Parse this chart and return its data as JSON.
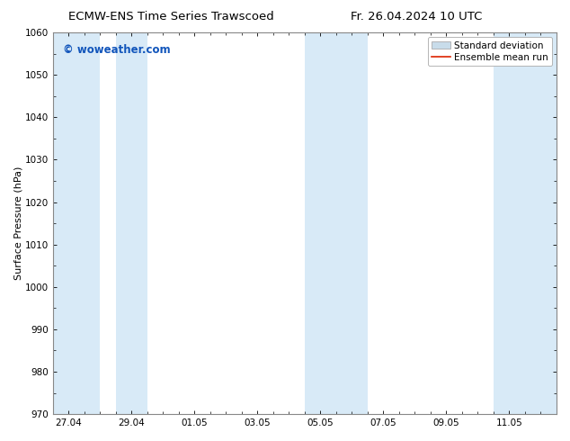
{
  "title_left": "ECMW-ENS Time Series Trawscoed",
  "title_right": "Fr. 26.04.2024 10 UTC",
  "ylabel": "Surface Pressure (hPa)",
  "ylim": [
    970,
    1060
  ],
  "yticks": [
    970,
    980,
    990,
    1000,
    1010,
    1020,
    1030,
    1040,
    1050,
    1060
  ],
  "xtick_labels": [
    "27.04",
    "29.04",
    "01.05",
    "03.05",
    "05.05",
    "07.05",
    "09.05",
    "11.05"
  ],
  "xtick_positions": [
    0,
    2,
    4,
    6,
    8,
    10,
    12,
    14
  ],
  "x_min": -0.5,
  "x_max": 15.5,
  "shaded_bands": [
    {
      "x_start": -0.5,
      "x_end": 1.0
    },
    {
      "x_start": 1.5,
      "x_end": 2.5
    },
    {
      "x_start": 7.5,
      "x_end": 9.5
    },
    {
      "x_start": 13.5,
      "x_end": 15.5
    }
  ],
  "shade_color": "#d8eaf7",
  "background_color": "#ffffff",
  "border_color": "#888888",
  "watermark": "© woweather.com",
  "watermark_color": "#1155bb",
  "legend_std_label": "Standard deviation",
  "legend_mean_label": "Ensemble mean run",
  "legend_std_facecolor": "#c8dcea",
  "legend_std_edgecolor": "#aaaaaa",
  "legend_mean_color": "#dd2200",
  "title_fontsize": 9.5,
  "axis_label_fontsize": 8,
  "tick_fontsize": 7.5,
  "watermark_fontsize": 8.5,
  "legend_fontsize": 7.5
}
